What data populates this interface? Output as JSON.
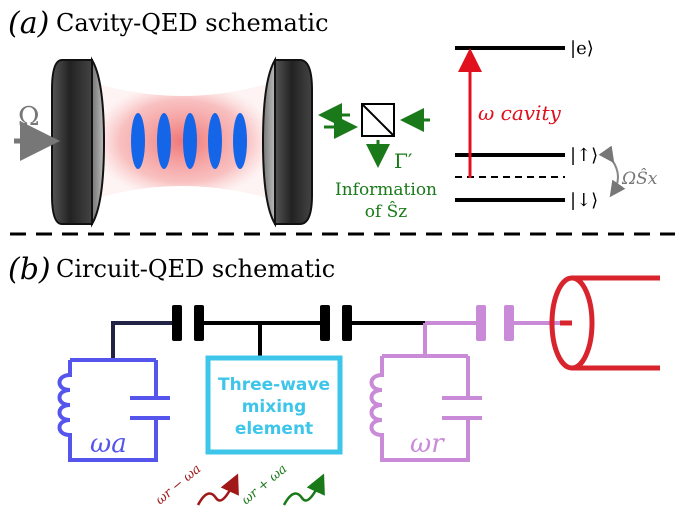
{
  "panel_a": {
    "label": "(a)",
    "title": "Cavity-QED schematic",
    "drive_symbol": "Ω",
    "gamma_label": "Γ′",
    "info_line1": "Information",
    "info_line2": "of Ŝz",
    "levels": {
      "excited": "|e⟩",
      "up": "|↑⟩",
      "down": "|↓⟩",
      "transition": "ω cavity",
      "coupling": "ΩŜx"
    }
  },
  "panel_b": {
    "label": "(b)",
    "title": "Circuit-QED schematic",
    "mixer_line1": "Three-wave",
    "mixer_line2": "mixing",
    "mixer_line3": "element",
    "omega_a": "ωa",
    "omega_r": "ωr",
    "signal_minus": "ωr − ωa",
    "signal_plus": "ωr + ωa"
  },
  "colors": {
    "cavity_glow": "#f4a0a0",
    "atom_blue": "#1565e8",
    "arrow_green": "#1a7a1a",
    "transition_red": "#e0101c",
    "qubit_blue": "#5555ee",
    "resonator_purple": "#c98ad8",
    "mixer_cyan": "#3ec6ea",
    "output_red": "#d8252d",
    "signal_darkred": "#a01818"
  }
}
